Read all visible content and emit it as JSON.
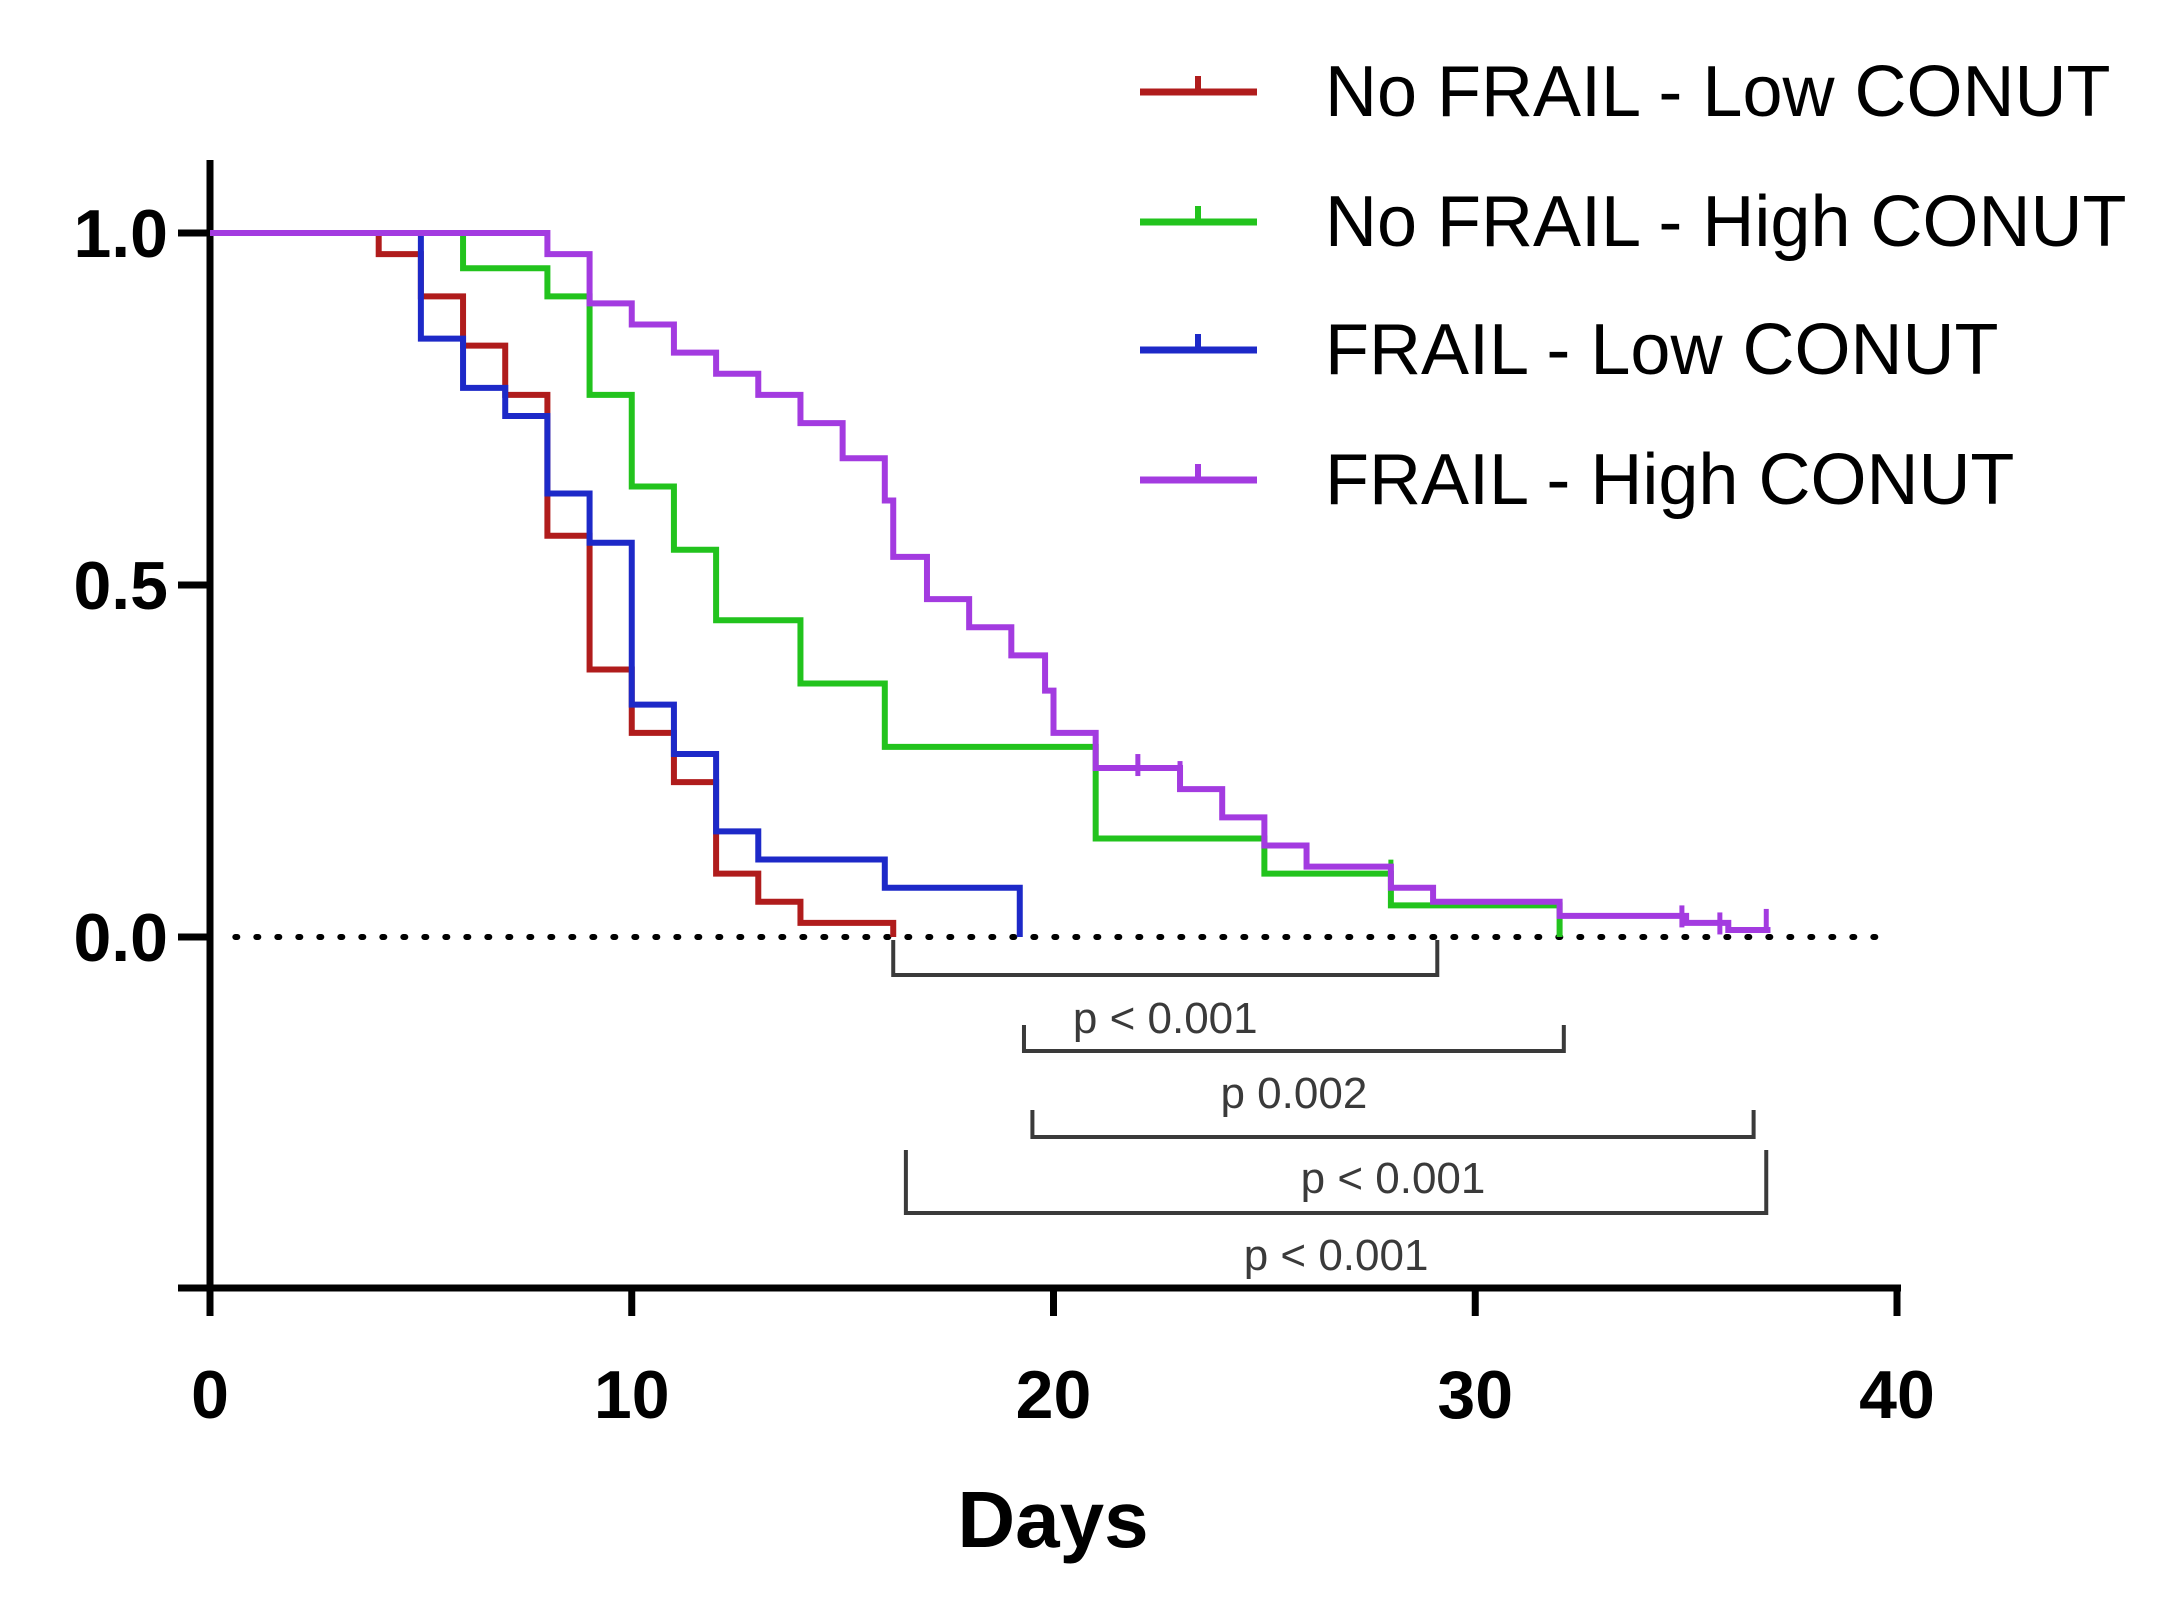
{
  "chart_data": {
    "type": "line",
    "subtype": "kaplan-meier-step",
    "title": "",
    "xlabel": "Days",
    "ylabel": "",
    "xlim": [
      0,
      40
    ],
    "ylim": [
      -0.5,
      1.1
    ],
    "xticks": [
      0,
      10,
      20,
      30,
      40
    ],
    "xtick_labels": [
      "0",
      "10",
      "20",
      "30",
      "40"
    ],
    "yticks": [
      1.0,
      0.5,
      0.0
    ],
    "ytick_labels": [
      "1.0",
      "0.5",
      "0.0"
    ],
    "reference_line": {
      "y": 0.0,
      "style": "dotted",
      "x_range": [
        0.6,
        39.5
      ]
    },
    "legend_position": "top-right",
    "series": [
      {
        "name": "No FRAIL - Low CONUT",
        "color": "#b01c1c",
        "steps": [
          [
            0,
            1.0
          ],
          [
            4,
            0.97
          ],
          [
            5,
            0.91
          ],
          [
            6,
            0.84
          ],
          [
            7,
            0.77
          ],
          [
            8,
            0.57
          ],
          [
            9,
            0.38
          ],
          [
            10,
            0.29
          ],
          [
            11,
            0.22
          ],
          [
            12,
            0.09
          ],
          [
            13,
            0.05
          ],
          [
            14,
            0.02
          ],
          [
            16.2,
            0.0
          ]
        ],
        "censor": []
      },
      {
        "name": "No FRAIL - High CONUT",
        "color": "#22c31d",
        "steps": [
          [
            0,
            1.0
          ],
          [
            6,
            0.95
          ],
          [
            8,
            0.91
          ],
          [
            9,
            0.77
          ],
          [
            10,
            0.64
          ],
          [
            11,
            0.55
          ],
          [
            12,
            0.45
          ],
          [
            14,
            0.36
          ],
          [
            16,
            0.27
          ],
          [
            21,
            0.14
          ],
          [
            25,
            0.09
          ],
          [
            28,
            0.045
          ],
          [
            29,
            0.045
          ],
          [
            32,
            0.0
          ]
        ],
        "censor": [
          [
            28,
            0.09
          ]
        ]
      },
      {
        "name": "FRAIL - Low CONUT",
        "color": "#1d29c8",
        "steps": [
          [
            0,
            1.0
          ],
          [
            5,
            0.85
          ],
          [
            6,
            0.78
          ],
          [
            7,
            0.74
          ],
          [
            8,
            0.63
          ],
          [
            9,
            0.56
          ],
          [
            10,
            0.33
          ],
          [
            11,
            0.26
          ],
          [
            12,
            0.15
          ],
          [
            13,
            0.11
          ],
          [
            16,
            0.07
          ],
          [
            19.2,
            0.0
          ]
        ],
        "censor": []
      },
      {
        "name": "FRAIL - High CONUT",
        "color": "#a33be0",
        "steps": [
          [
            0,
            1.0
          ],
          [
            8,
            0.97
          ],
          [
            9,
            0.9
          ],
          [
            10,
            0.87
          ],
          [
            11,
            0.83
          ],
          [
            12,
            0.8
          ],
          [
            13,
            0.77
          ],
          [
            14,
            0.73
          ],
          [
            15,
            0.68
          ],
          [
            16,
            0.62
          ],
          [
            16.2,
            0.54
          ],
          [
            17,
            0.48
          ],
          [
            18,
            0.44
          ],
          [
            19,
            0.4
          ],
          [
            19.8,
            0.35
          ],
          [
            20,
            0.29
          ],
          [
            21,
            0.24
          ],
          [
            23,
            0.21
          ],
          [
            24,
            0.17
          ],
          [
            25,
            0.13
          ],
          [
            26,
            0.1
          ],
          [
            28,
            0.07
          ],
          [
            29,
            0.05
          ],
          [
            32,
            0.03
          ],
          [
            35,
            0.02
          ],
          [
            36,
            0.01
          ],
          [
            37,
            0.01
          ]
        ],
        "censor": [
          [
            22,
            0.24
          ],
          [
            23,
            0.23
          ],
          [
            34.9,
            0.025
          ],
          [
            35.8,
            0.015
          ],
          [
            36.9,
            0.02
          ]
        ]
      }
    ],
    "comparisons": [
      {
        "from": 16.2,
        "to": 29.1,
        "p": "p < 0.001"
      },
      {
        "from": 19.3,
        "to": 32.1,
        "p": "p 0.002"
      },
      {
        "from": 19.5,
        "to": 36.6,
        "p": "p < 0.001"
      },
      {
        "from": 16.5,
        "to": 36.9,
        "p": "p < 0.001"
      }
    ]
  }
}
